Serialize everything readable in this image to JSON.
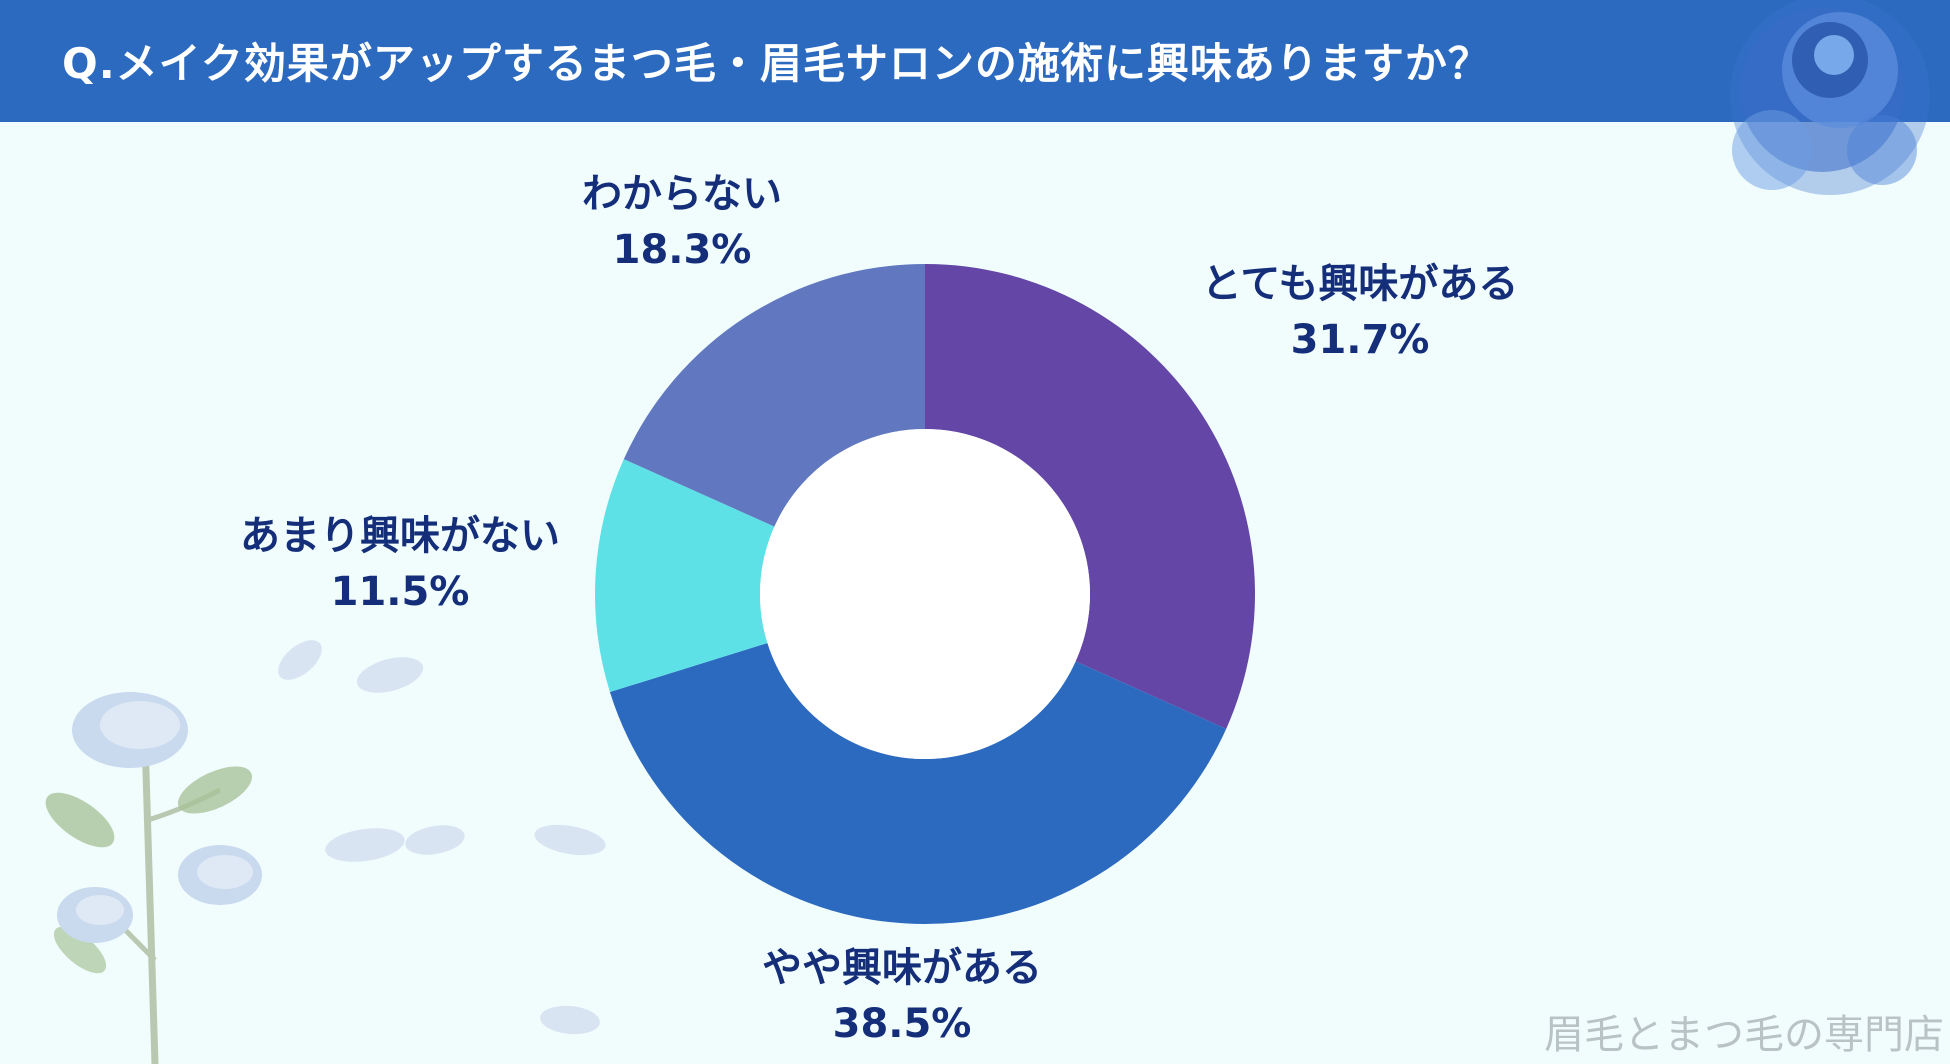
{
  "header": {
    "title": "Q.メイク効果がアップするまつ毛・眉毛サロンの施術に興味ありますか？",
    "background_color": "#2c6ac0"
  },
  "chart_data": {
    "type": "pie",
    "donut": true,
    "title": "Q.メイク効果がアップするまつ毛・眉毛サロンの施術に興味ありますか？",
    "slices": [
      {
        "label": "とても興味がある",
        "value": 31.7,
        "value_label": "31.7%",
        "color": "#6346a6"
      },
      {
        "label": "やや興味がある",
        "value": 38.5,
        "value_label": "38.5%",
        "color": "#2c6ac0"
      },
      {
        "label": "あまり興味がない",
        "value": 11.5,
        "value_label": "11.5%",
        "color": "#5ee1e6"
      },
      {
        "label": "わからない",
        "value": 18.3,
        "value_label": "18.3%",
        "color": "#6178c0"
      }
    ],
    "label_color": "#152e7a"
  },
  "watermark": {
    "text": "眉毛とまつ毛の専門店"
  },
  "decorations": {
    "icons": [
      "blue-rose-icon",
      "rose-branch-icon",
      "petal-icon"
    ]
  }
}
